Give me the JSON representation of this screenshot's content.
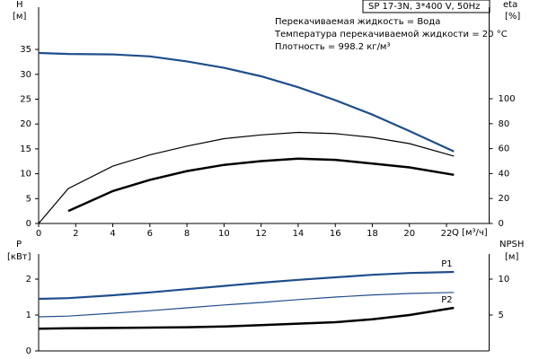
{
  "chart_data": [
    {
      "type": "line",
      "title": "SP 17-3N, 3*400 V, 50Hz",
      "annotations": [
        "Перекачиваемая жидкость = Вода",
        "Температура перекачиваемой жидкости = 20 °C",
        "Плотность = 998.2 кг/м³"
      ],
      "ylabel": "H",
      "ylabel_unit": "[м]",
      "y2label": "eta",
      "y2label_unit": "[%]",
      "xlabel": "Q [м³/ч]",
      "x": [
        0,
        1.6,
        4,
        6,
        8,
        10,
        12,
        14,
        16,
        18,
        20,
        22.4
      ],
      "xlim": [
        0,
        24.3
      ],
      "xticks": [
        0,
        2,
        4,
        6,
        8,
        10,
        12,
        14,
        16,
        18,
        20,
        22
      ],
      "ylim": [
        0,
        43.5
      ],
      "yticks": [
        0,
        5,
        10,
        15,
        20,
        25,
        30,
        35
      ],
      "y2lim": [
        0,
        173.4
      ],
      "y2ticks": [
        0,
        20,
        40,
        60,
        80,
        100
      ],
      "series": [
        {
          "color": "#1f4e8c",
          "values": [
            34.3,
            34.1,
            34.0,
            33.6,
            32.6,
            31.3,
            29.6,
            27.4,
            24.8,
            21.9,
            18.6,
            14.5
          ]
        },
        {
          "color": "#000000",
          "axis": "y2",
          "values": [
            0,
            28,
            46,
            55,
            62,
            68,
            71,
            73,
            72,
            69,
            64,
            54
          ]
        },
        {
          "color": "#000000",
          "axis": "y2",
          "values": [
            null,
            10,
            26,
            35,
            42,
            47,
            50,
            52,
            51,
            48,
            45,
            39
          ]
        }
      ]
    },
    {
      "type": "line",
      "ylabel": "P",
      "ylabel_unit": "[кВт]",
      "y2label": "NPSH",
      "y2label_unit": "[м]",
      "x": [
        0,
        1.6,
        4,
        6,
        8,
        10,
        12,
        14,
        16,
        18,
        20,
        22.4
      ],
      "xlim": [
        0,
        24.3
      ],
      "ylim": [
        0,
        2.7
      ],
      "yticks": [
        0,
        1,
        2
      ],
      "y2lim": [
        0,
        13.5
      ],
      "y2ticks": [
        5,
        10
      ],
      "series": [
        {
          "name": "P1",
          "color": "#1f4e8c",
          "values": [
            1.45,
            1.47,
            1.55,
            1.63,
            1.72,
            1.81,
            1.9,
            1.98,
            2.05,
            2.12,
            2.17,
            2.2
          ]
        },
        {
          "name": "P2",
          "color": "#1f4e8c",
          "values": [
            0.95,
            0.97,
            1.05,
            1.12,
            1.2,
            1.28,
            1.35,
            1.43,
            1.5,
            1.56,
            1.6,
            1.63
          ]
        },
        {
          "color": "#000000",
          "axis": "y2",
          "values": [
            3.1,
            3.15,
            3.2,
            3.25,
            3.3,
            3.4,
            3.6,
            3.8,
            4.0,
            4.4,
            5.0,
            6.0
          ]
        }
      ]
    }
  ]
}
